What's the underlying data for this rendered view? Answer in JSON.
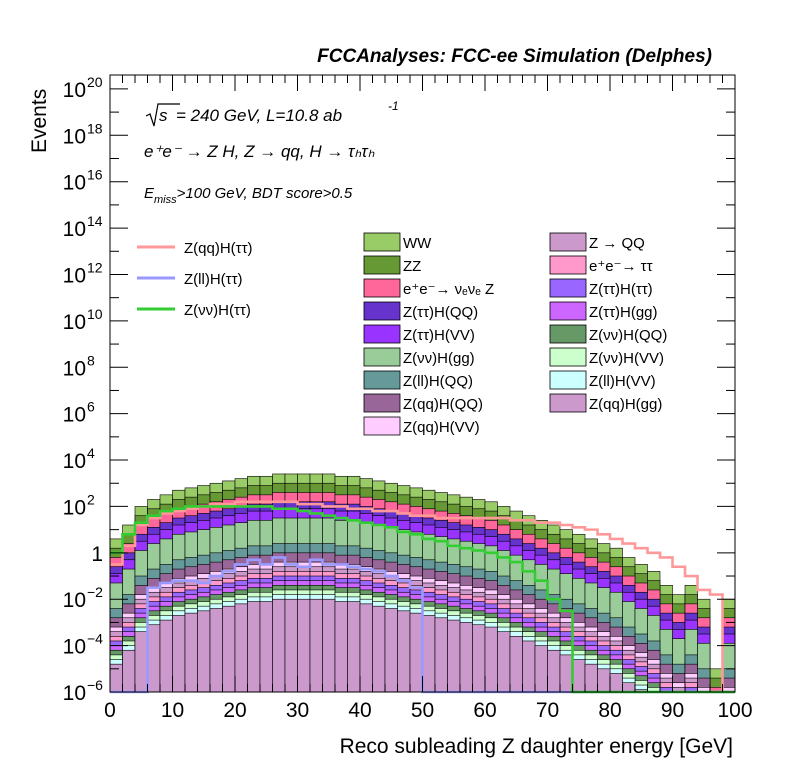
{
  "chart_data": {
    "type": "area",
    "title": "FCCAnalyses: FCC-ee Simulation (Delphes)",
    "annotations": {
      "sqrt_s": "s",
      "energy_lumi": "= 240 GeV, L=10.8 ab",
      "lumi_exp": "-1",
      "process": "e⁺e⁻ → Z H, Z → qq, H → τₕτₕ",
      "cuts": "E_miss>100 GeV, BDT score>0.5",
      "cuts_main": "E",
      "cuts_sub": "miss",
      "cuts_rest": ">100 GeV, BDT score>0.5"
    },
    "xlabel": "Reco subleading Z daughter energy [GeV]",
    "ylabel": "Events",
    "xlim": [
      0,
      100
    ],
    "ylog": true,
    "ylim_exp": [
      -6,
      20.6
    ],
    "x_ticks": [
      "0",
      "10",
      "20",
      "30",
      "40",
      "50",
      "60",
      "70",
      "80",
      "90",
      "100"
    ],
    "y_ticks": [
      {
        "exp": -6,
        "base": "10",
        "sup": "−6"
      },
      {
        "exp": -4,
        "base": "10",
        "sup": "−4"
      },
      {
        "exp": -2,
        "base": "10",
        "sup": "−2"
      },
      {
        "exp": 0,
        "base": "1",
        "sup": ""
      },
      {
        "exp": 2,
        "base": "10",
        "sup": "2"
      },
      {
        "exp": 4,
        "base": "10",
        "sup": "4"
      },
      {
        "exp": 6,
        "base": "10",
        "sup": "6"
      },
      {
        "exp": 8,
        "base": "10",
        "sup": "8"
      },
      {
        "exp": 10,
        "base": "10",
        "sup": "10"
      },
      {
        "exp": 12,
        "base": "10",
        "sup": "12"
      },
      {
        "exp": 14,
        "base": "10",
        "sup": "14"
      },
      {
        "exp": 16,
        "base": "10",
        "sup": "16"
      },
      {
        "exp": 18,
        "base": "10",
        "sup": "18"
      },
      {
        "exp": 20,
        "base": "10",
        "sup": "20"
      }
    ],
    "bin_width": 2,
    "stack_outer_log10": [
      0.6,
      1.2,
      2.0,
      2.3,
      2.5,
      2.7,
      2.8,
      2.9,
      3.0,
      3.1,
      3.2,
      3.3,
      3.3,
      3.4,
      3.4,
      3.4,
      3.4,
      3.4,
      3.3,
      3.3,
      3.2,
      3.1,
      3.0,
      2.9,
      2.8,
      2.7,
      2.6,
      2.5,
      2.4,
      2.3,
      2.2,
      2.0,
      1.8,
      1.6,
      1.4,
      1.2,
      1.0,
      0.8,
      0.6,
      0.4,
      0.2,
      -0.2,
      -0.5,
      -0.8,
      -1.4,
      -1.8,
      -1.4,
      -2.0,
      -5.0,
      -2.0
    ],
    "stack_layers": [
      {
        "name": "WW",
        "color": "#99cc66",
        "offset": 0.0
      },
      {
        "name": "ZZ",
        "color": "#669933",
        "offset": -0.4
      },
      {
        "name": "e⁺e⁻→ νₑνₑ Z",
        "color": "#ff6699",
        "offset": -0.8
      },
      {
        "name": "Z(ττ)H(QQ)",
        "color": "#6633cc",
        "offset": -1.2
      },
      {
        "name": "Z(ττ)H(VV)",
        "color": "#9933ff",
        "offset": -1.5
      },
      {
        "name": "Z(νν)H(gg)",
        "color": "#99cc99",
        "offset": -1.9
      },
      {
        "name": "Z(ll)H(QQ)",
        "color": "#669999",
        "offset": -3.0
      },
      {
        "name": "Z(qq)H(QQ)",
        "color": "#996699",
        "offset": -3.4
      },
      {
        "name": "Z(qq)H(VV)",
        "color": "#ffccff",
        "offset": -3.8
      },
      {
        "name": "Z → QQ",
        "color": "#cc99cc",
        "offset": -4.0
      },
      {
        "name": "e⁺e⁻→ ττ",
        "color": "#ff99cc",
        "offset": -4.2
      },
      {
        "name": "Z(ττ)H(ττ)",
        "color": "#9966ff",
        "offset": -4.4
      },
      {
        "name": "Z(ττ)H(gg)",
        "color": "#cc66ff",
        "offset": -4.6
      },
      {
        "name": "Z(νν)H(QQ)",
        "color": "#669966",
        "offset": -4.8
      },
      {
        "name": "Z(νν)H(VV)",
        "color": "#ccffcc",
        "offset": -5.0
      },
      {
        "name": "Z(ll)H(VV)",
        "color": "#ccffff",
        "offset": -5.2
      },
      {
        "name": "Z(qq)H(gg)",
        "color": "#cc99cc",
        "offset": -5.4
      }
    ],
    "signal_series": [
      {
        "name": "Z(qq)H(ττ)",
        "color": "#ff9999",
        "log10": [
          -0.5,
          0.3,
          1.2,
          1.5,
          1.7,
          1.8,
          1.9,
          2.0,
          2.1,
          2.1,
          2.2,
          2.2,
          2.2,
          2.2,
          2.2,
          2.1,
          2.1,
          2.0,
          2.0,
          1.9,
          1.9,
          1.8,
          1.8,
          1.7,
          1.6,
          1.6,
          1.5,
          1.5,
          1.5,
          1.5,
          1.5,
          1.5,
          1.4,
          1.4,
          1.3,
          1.3,
          1.2,
          1.1,
          1.0,
          0.8,
          0.6,
          0.4,
          0.2,
          0.0,
          -0.2,
          -0.6,
          -1.0,
          -1.6,
          -1.8,
          -6.0
        ]
      },
      {
        "name": "Z(ll)H(ττ)",
        "color": "#9999ff",
        "log10": [
          -6.0,
          -6.0,
          -6.0,
          -1.5,
          -1.3,
          -1.2,
          -1.2,
          -1.3,
          -1.0,
          -0.8,
          -0.5,
          -0.3,
          -0.5,
          -0.2,
          -0.5,
          -0.6,
          -0.3,
          -0.5,
          -0.5,
          -0.6,
          -0.7,
          -0.8,
          -1.0,
          -1.2,
          -1.5,
          -6.0,
          -6.0,
          -6.0,
          -6.0,
          -6.0,
          -6.0,
          -6.0,
          -6.0,
          -6.0,
          -6.0,
          -6.0,
          -6.0,
          -6.0,
          -6.0,
          -6.0,
          -6.0,
          -6.0,
          -6.0,
          -6.0,
          -6.0,
          -6.0,
          -6.0,
          -6.0,
          -6.0,
          -6.0
        ]
      },
      {
        "name": "Z(νν)H(ττ)",
        "color": "#33cc33",
        "log10": [
          0.0,
          0.8,
          1.3,
          1.6,
          1.8,
          1.9,
          2.0,
          2.0,
          2.0,
          2.0,
          2.0,
          2.0,
          2.0,
          1.9,
          1.9,
          1.8,
          1.7,
          1.6,
          1.5,
          1.4,
          1.3,
          1.2,
          1.1,
          0.9,
          0.8,
          0.6,
          0.5,
          0.3,
          0.2,
          0.1,
          0.0,
          -0.2,
          -0.4,
          -0.8,
          -1.2,
          -2.0,
          -2.5,
          -6.0,
          -6.0,
          -6.0,
          -6.0,
          -6.0,
          -6.0,
          -6.0,
          -6.0,
          -6.0,
          -6.0,
          -6.0,
          -6.0,
          -6.0
        ]
      }
    ],
    "legend": {
      "left": [
        "Z(qq)H(ττ)",
        "Z(ll)H(ττ)",
        "Z(νν)H(ττ)"
      ],
      "col1": [
        "WW",
        "ZZ",
        "e⁺e⁻→ νₑνₑ Z",
        "Z(ττ)H(QQ)",
        "Z(ττ)H(VV)",
        "Z(νν)H(gg)",
        "Z(ll)H(QQ)",
        "Z(qq)H(QQ)",
        "Z(qq)H(VV)"
      ],
      "col2": [
        "Z → QQ",
        "e⁺e⁻→ ττ",
        "Z(ττ)H(ττ)",
        "Z(ττ)H(gg)",
        "Z(νν)H(QQ)",
        "Z(νν)H(VV)",
        "Z(ll)H(VV)",
        "Z(qq)H(gg)"
      ]
    }
  }
}
